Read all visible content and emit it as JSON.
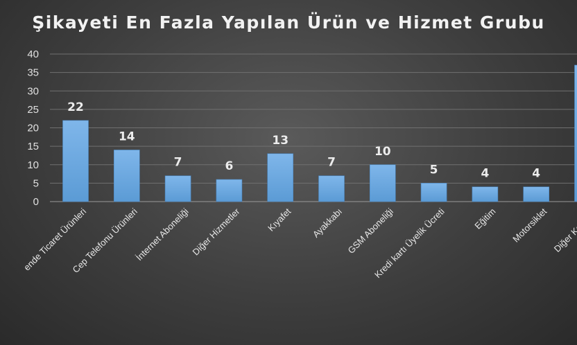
{
  "chart_data": {
    "type": "bar",
    "title": "Şikayeti En Fazla Yapılan Ürün ve Hizmet Grubu",
    "xlabel": "",
    "ylabel": "",
    "ylim": [
      0,
      40
    ],
    "yticks": [
      0,
      5,
      10,
      15,
      20,
      25,
      30,
      35,
      40
    ],
    "grid": true,
    "bar_color": "#5b9bd5",
    "categories": [
      "Evde Kullanılan Elektronik Ticaret Ürünleri",
      "Cep Telefonu Ürünleri",
      "İnternet Aboneliği",
      "Diğer Hizmetler",
      "Kıyafet",
      "Ayakkabı",
      "GSM Aboneliği",
      "Kredi kartı Üyelik Ücreti",
      "Eğitim",
      "Motorsiklet",
      "Diğer Kategoriler"
    ],
    "category_labels_visible": [
      "ende Ticaret Ürünleri",
      "Cep Telefonu Ürünleri",
      "İnternet Aboneliği",
      "Diğer Hizmetler",
      "Kıyafet",
      "Ayakkabı",
      "GSM Aboneliği",
      "Kredi kartı Üyelik Ücreti",
      "Eğitim",
      "Motorsiklet",
      "Diğer Kategori"
    ],
    "values": [
      22,
      14,
      7,
      6,
      13,
      7,
      10,
      5,
      4,
      4,
      37
    ],
    "data_labels": [
      "22",
      "14",
      "7",
      "6",
      "13",
      "7",
      "10",
      "5",
      "4",
      "4",
      ""
    ]
  }
}
